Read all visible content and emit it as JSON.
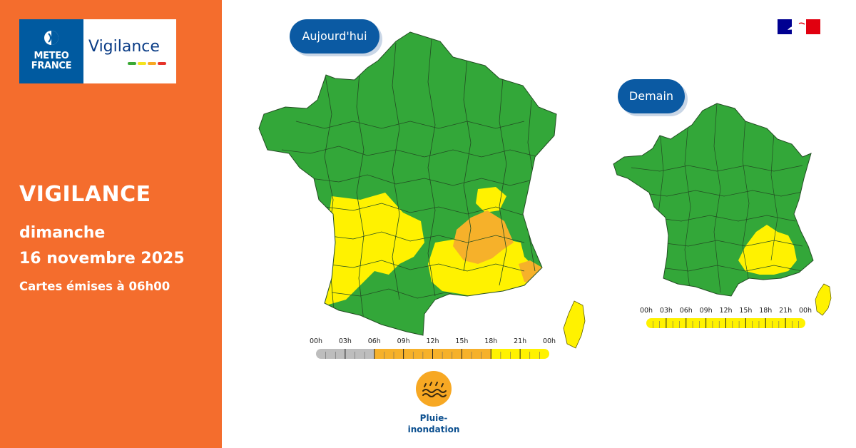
{
  "brand": {
    "logo_text": "METEO FRANCE",
    "product_logo": "Vigilance",
    "logo_bar_colors": [
      "#3aa935",
      "#f4e31d",
      "#f7a823",
      "#e6332a"
    ],
    "primary_color": "#005aa0"
  },
  "sidebar": {
    "background_color": "#f46d2d",
    "title": "VIGILANCE",
    "day": "dimanche",
    "date": "16 novembre 2025",
    "issued": "Cartes émises à 06h00"
  },
  "level_colors": {
    "vert": "#33a739",
    "jaune": "#fff200",
    "orange": "#f6b12a",
    "not_applicable": "#bdbdbd"
  },
  "maps": {
    "today": {
      "label": "Aujourd'hui",
      "timeline": {
        "hours": [
          "00h",
          "03h",
          "06h",
          "09h",
          "12h",
          "15h",
          "18h",
          "21h",
          "00h"
        ],
        "segments": [
          {
            "from_hour": 0,
            "to_hour": 6,
            "level": "past"
          },
          {
            "from_hour": 6,
            "to_hour": 18,
            "level": "orange"
          },
          {
            "from_hour": 18,
            "to_hour": 24,
            "level": "jaune"
          }
        ]
      }
    },
    "tomorrow": {
      "label": "Demain",
      "timeline": {
        "hours": [
          "00h",
          "03h",
          "06h",
          "09h",
          "12h",
          "15h",
          "18h",
          "21h",
          "00h"
        ],
        "segments": [
          {
            "from_hour": 0,
            "to_hour": 24,
            "level": "jaune"
          }
        ]
      }
    }
  },
  "hazards": [
    {
      "icon": "pluie-inondation-icon",
      "label": "Pluie-\ninondation",
      "level": "orange"
    }
  ]
}
